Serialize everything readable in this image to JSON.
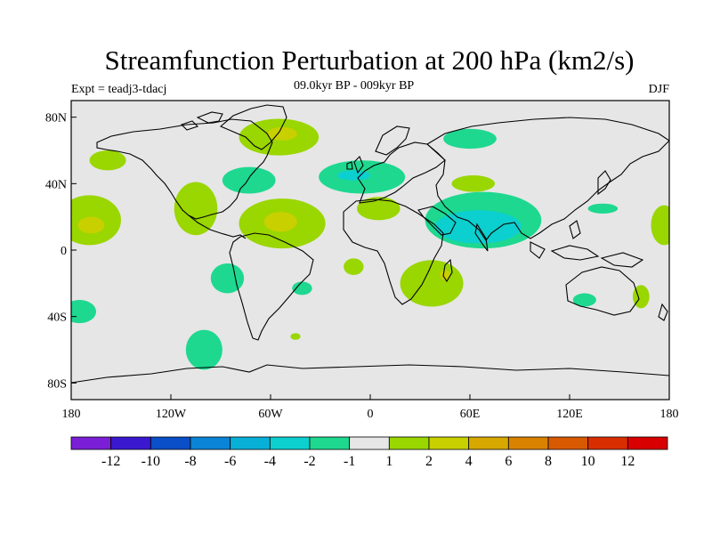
{
  "title": "Streamfunction Perturbation at 200 hPa (km2/s)",
  "experiment": "Expt = teadj3-tdacj",
  "subtitle": "09.0kyr BP - 009kyr BP",
  "season": "DJF",
  "chart_data": {
    "type": "filled-contour-map",
    "projection": "cylindrical-equidistant",
    "lon_range": [
      -180,
      180
    ],
    "lat_range": [
      -90,
      90
    ],
    "x_ticks": [
      {
        "lon": -180,
        "label": "180"
      },
      {
        "lon": -120,
        "label": "120W"
      },
      {
        "lon": -60,
        "label": "60W"
      },
      {
        "lon": 0,
        "label": "0"
      },
      {
        "lon": 60,
        "label": "60E"
      },
      {
        "lon": 120,
        "label": "120E"
      },
      {
        "lon": 180,
        "label": "180"
      }
    ],
    "y_ticks": [
      {
        "lat": 80,
        "label": "80N"
      },
      {
        "lat": 40,
        "label": "40N"
      },
      {
        "lat": 0,
        "label": "0"
      },
      {
        "lat": -40,
        "label": "40S"
      },
      {
        "lat": -80,
        "label": "80S"
      }
    ],
    "colorbar": {
      "colors": [
        "#7a1fd6",
        "#3a18d0",
        "#0a4ec8",
        "#0a84d6",
        "#08b0d8",
        "#0ccfcf",
        "#1ed890",
        "#e6e6e6",
        "#9ad600",
        "#c9d000",
        "#d6a800",
        "#d88200",
        "#d85a00",
        "#d82e00",
        "#d80000"
      ],
      "labels": [
        "-12",
        "-10",
        "-8",
        "-6",
        "-4",
        "-2",
        "-1",
        "1",
        "2",
        "4",
        "6",
        "8",
        "10",
        "12"
      ]
    },
    "regions": [
      {
        "name": "north-pacific-positive",
        "level": 2,
        "lon": -158,
        "lat": 54,
        "rlon": 11,
        "rlat": 6
      },
      {
        "name": "greenland-positive",
        "level": 2,
        "lon": -55,
        "lat": 68,
        "rlon": 24,
        "rlat": 11
      },
      {
        "name": "greenland-core",
        "level": 4,
        "lon": -53,
        "lat": 70,
        "rlon": 9,
        "rlat": 4
      },
      {
        "name": "north-america-negative",
        "level": -2,
        "lon": -73,
        "lat": 42,
        "rlon": 16,
        "rlat": 8
      },
      {
        "name": "mexico-positive",
        "level": 2,
        "lon": -105,
        "lat": 25,
        "rlon": 13,
        "rlat": 16
      },
      {
        "name": "east-pacific-positive",
        "level": 2,
        "lon": -169,
        "lat": 18,
        "rlon": 19,
        "rlat": 15
      },
      {
        "name": "east-pacific-core",
        "level": 4,
        "lon": -168,
        "lat": 15,
        "rlon": 8,
        "rlat": 5
      },
      {
        "name": "caribbean-positive",
        "level": 2,
        "lon": -53,
        "lat": 16,
        "rlon": 26,
        "rlat": 15
      },
      {
        "name": "caribbean-core",
        "level": 4,
        "lon": -54,
        "lat": 17,
        "rlon": 10,
        "rlat": 6
      },
      {
        "name": "north-atlantic-negative",
        "level": -2,
        "lon": -5,
        "lat": 44,
        "rlon": 26,
        "rlat": 10
      },
      {
        "name": "europe-core",
        "level": -4,
        "lon": -10,
        "lat": 45,
        "rlon": 10,
        "rlat": 3
      },
      {
        "name": "north-africa-positive",
        "level": 2,
        "lon": 5,
        "lat": 25,
        "rlon": 13,
        "rlat": 7
      },
      {
        "name": "asia-negative",
        "level": -2,
        "lon": 68,
        "lat": 18,
        "rlon": 35,
        "rlat": 17
      },
      {
        "name": "asia-core",
        "level": -4,
        "lon": 65,
        "lat": 14,
        "rlon": 26,
        "rlat": 10
      },
      {
        "name": "arctic-asia-negative",
        "level": -2,
        "lon": 60,
        "lat": 67,
        "rlon": 16,
        "rlat": 6
      },
      {
        "name": "central-asia-positive",
        "level": 2,
        "lon": 62,
        "lat": 40,
        "rlon": 13,
        "rlat": 5
      },
      {
        "name": "southern-africa-positive",
        "level": 2,
        "lon": 37,
        "lat": -20,
        "rlon": 19,
        "rlat": 14
      },
      {
        "name": "mozambique-core",
        "level": 4,
        "lon": 45,
        "lat": -15,
        "rlon": 3,
        "rlat": 3
      },
      {
        "name": "south-atlantic-positive",
        "level": 2,
        "lon": -10,
        "lat": -10,
        "rlon": 6,
        "rlat": 5
      },
      {
        "name": "south-pacific-negative",
        "level": -2,
        "lon": -86,
        "lat": -17,
        "rlon": 10,
        "rlat": 9
      },
      {
        "name": "south-atlantic-negative",
        "level": -2,
        "lon": -41,
        "lat": -23,
        "rlon": 6,
        "rlat": 4
      },
      {
        "name": "southeast-pacific-negative",
        "level": -2,
        "lon": -175,
        "lat": -37,
        "rlon": 10,
        "rlat": 7
      },
      {
        "name": "australia-negative",
        "level": -2,
        "lon": 129,
        "lat": -30,
        "rlon": 7,
        "rlat": 4
      },
      {
        "name": "tasman-positive",
        "level": 2,
        "lon": 163,
        "lat": -28,
        "rlon": 5,
        "rlat": 7
      },
      {
        "name": "western-pacific-positive",
        "level": 2,
        "lon": 177,
        "lat": 15,
        "rlon": 8,
        "rlat": 12
      },
      {
        "name": "south-ocean-negative",
        "level": -2,
        "lon": -100,
        "lat": -60,
        "rlon": 11,
        "rlat": 12
      },
      {
        "name": "drake-positive",
        "level": 2,
        "lon": -45,
        "lat": -52,
        "rlon": 3,
        "rlat": 2
      },
      {
        "name": "indo-west-pacific-negative",
        "level": -2,
        "lon": 140,
        "lat": 25,
        "rlon": 9,
        "rlat": 3
      }
    ]
  }
}
